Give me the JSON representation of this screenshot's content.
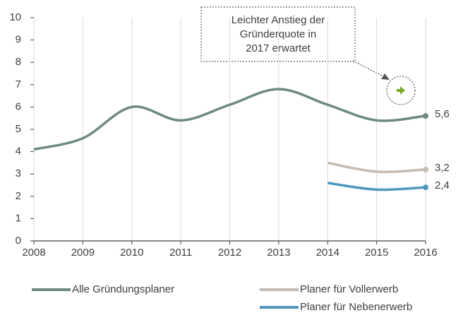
{
  "chart_data": {
    "type": "line",
    "categories": [
      "2008",
      "2009",
      "2010",
      "2011",
      "2012",
      "2013",
      "2014",
      "2015",
      "2016"
    ],
    "series": [
      {
        "name": "Alle Gründungsplaner",
        "color": "#6e8b7d",
        "values": [
          4.1,
          4.6,
          6.0,
          5.4,
          6.1,
          6.8,
          6.1,
          5.4,
          5.6
        ],
        "value_labels": [
          null,
          null,
          null,
          null,
          null,
          null,
          null,
          null,
          "5,6"
        ]
      },
      {
        "name": "Planer für Vollerwerb",
        "color": "#c4bcb5",
        "values": [
          null,
          null,
          null,
          null,
          null,
          null,
          3.5,
          3.1,
          3.2
        ],
        "value_labels": [
          null,
          null,
          null,
          null,
          null,
          null,
          null,
          null,
          "3,2"
        ]
      },
      {
        "name": "Planer für Nebenerwerb",
        "color": "#4f97bd",
        "values": [
          null,
          null,
          null,
          null,
          null,
          null,
          2.6,
          2.3,
          2.4
        ],
        "value_labels": [
          null,
          null,
          null,
          null,
          null,
          null,
          null,
          null,
          "2,4"
        ]
      }
    ],
    "ylim": [
      0,
      10
    ],
    "yticks": [
      0,
      1,
      2,
      3,
      4,
      5,
      6,
      7,
      8,
      9,
      10
    ],
    "grid": true,
    "annotation": [
      "Leichter Anstieg der",
      "Gründerquote in",
      "2017 erwartet"
    ]
  }
}
